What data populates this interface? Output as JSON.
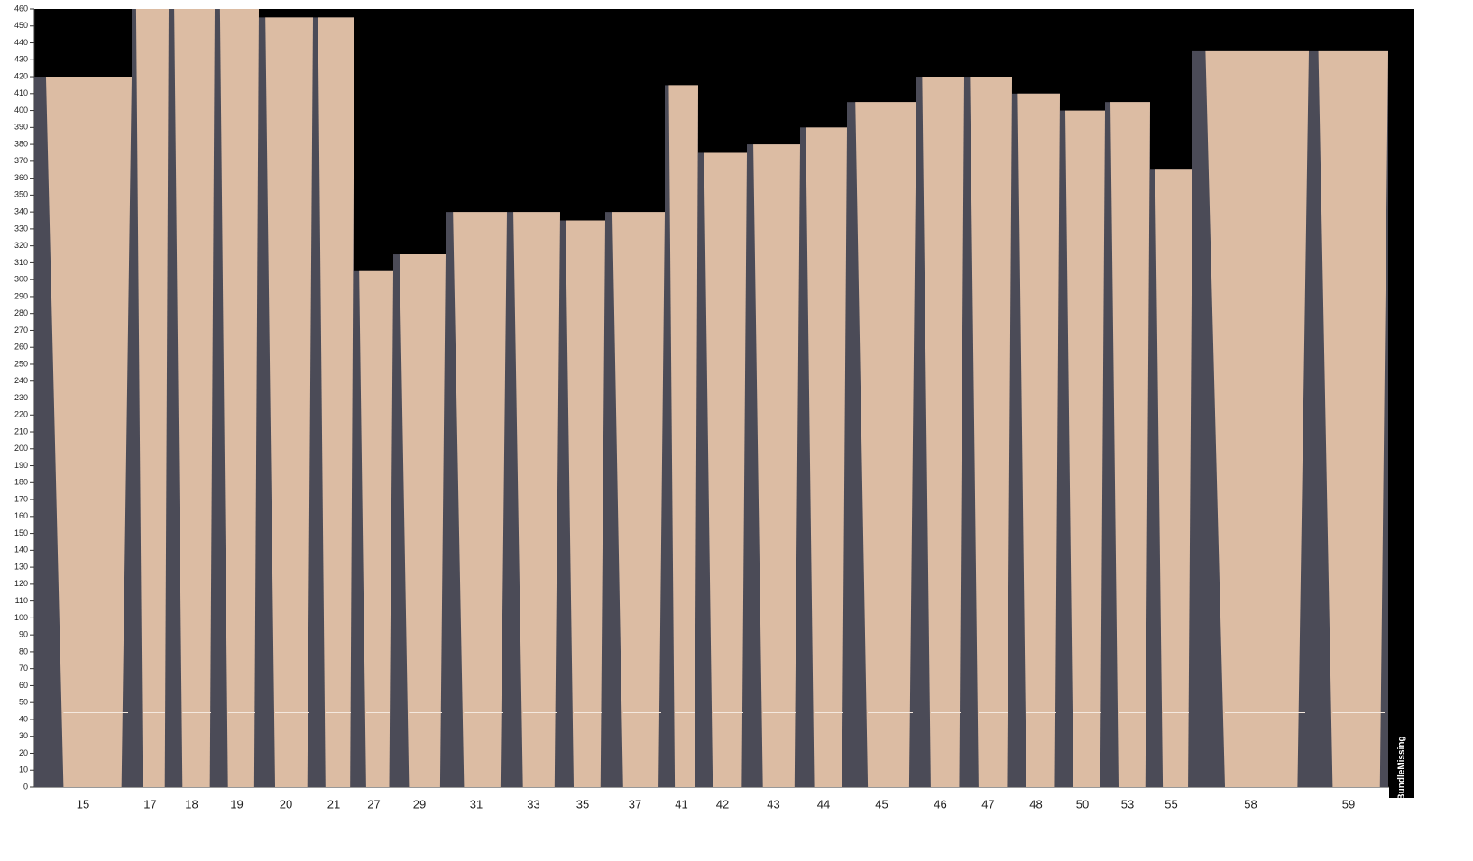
{
  "chart_data": {
    "type": "bar",
    "categories": [
      "15",
      "17",
      "18",
      "19",
      "20",
      "21",
      "27",
      "29",
      "31",
      "33",
      "35",
      "37",
      "41",
      "42",
      "43",
      "44",
      "45",
      "46",
      "47",
      "48",
      "50",
      "53",
      "55",
      "58",
      "59"
    ],
    "values": [
      420,
      460,
      460,
      460,
      455,
      455,
      305,
      315,
      340,
      340,
      335,
      340,
      415,
      375,
      380,
      390,
      405,
      420,
      420,
      410,
      400,
      405,
      365,
      435,
      435
    ],
    "color": "#dcbca3",
    "ylim": [
      0,
      460
    ],
    "yticks": [
      0,
      10,
      20,
      30,
      40,
      50,
      60,
      70,
      80,
      90,
      100,
      110,
      120,
      130,
      140,
      150,
      160,
      170,
      180,
      190,
      200,
      210,
      220,
      230,
      240,
      250,
      260,
      270,
      280,
      290,
      300,
      310,
      320,
      330,
      340,
      350,
      360,
      370,
      380,
      390,
      400,
      410,
      420,
      430,
      440,
      450,
      460
    ],
    "side_label": "BundleMissing"
  }
}
